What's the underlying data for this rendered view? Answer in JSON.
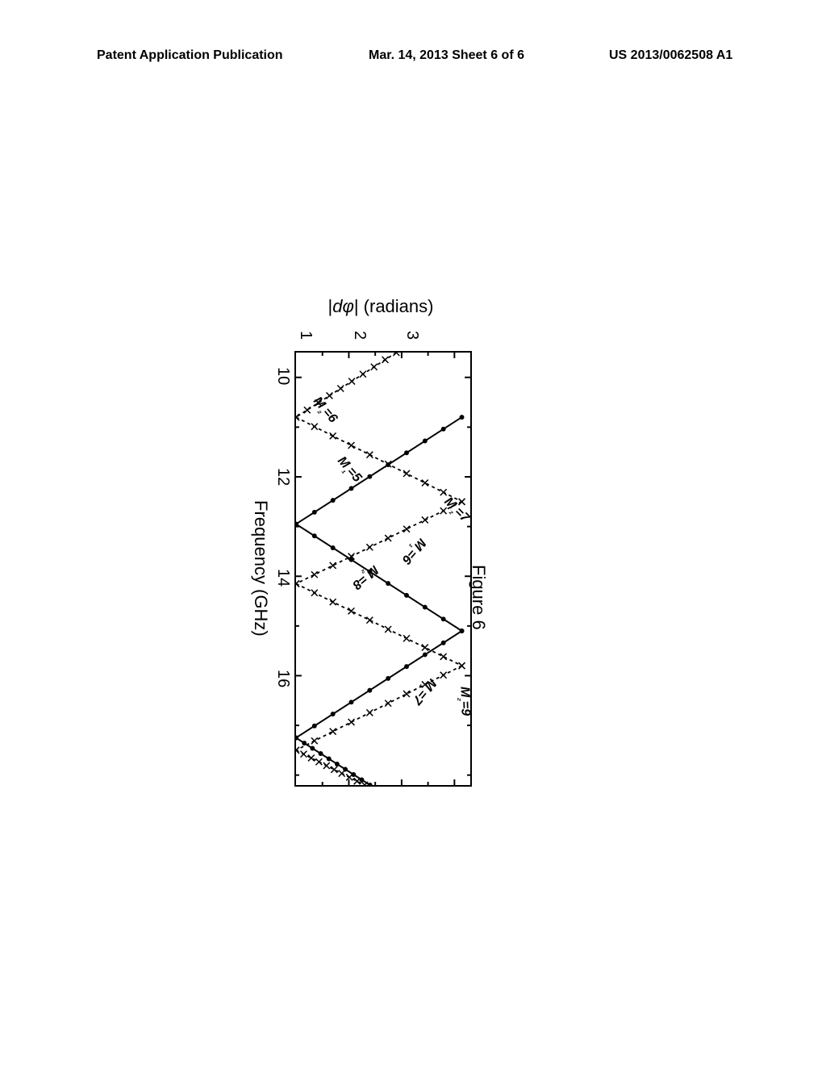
{
  "header": {
    "left": "Patent Application Publication",
    "center": "Mar. 14, 2013  Sheet 6 of 6",
    "right": "US 2013/0062508 A1"
  },
  "figure": {
    "caption": "Figure 6",
    "x_axis": {
      "label": "Frequency (GHz)",
      "min": 9.5,
      "max": 18.2,
      "ticks": [
        10,
        12,
        14,
        16
      ],
      "fontsize": 22
    },
    "y_axis": {
      "label": "|dφ| (radians)",
      "min": 0,
      "max": 3.3,
      "ticks": [
        1,
        2,
        3
      ],
      "fontsize": 22
    },
    "background_color": "#ffffff",
    "border_color": "#000000",
    "series_solid": {
      "label_prefix": "M₁",
      "style": "solid",
      "color": "#000000",
      "line_width": 2,
      "marker": "dot",
      "marker_size": 3,
      "segments": [
        {
          "label": "M₁=5",
          "x": [
            10.8,
            12.95
          ],
          "y": [
            3.14,
            0
          ],
          "label_pos": {
            "x": 12.0,
            "y": 1.0,
            "rot": -41
          }
        },
        {
          "label": "M₁=6",
          "x": [
            12.95,
            15.1
          ],
          "y": [
            0,
            3.14
          ],
          "label_pos": {
            "x": 13.6,
            "y": 2.2,
            "rot": 41
          }
        },
        {
          "label": "M₁=6",
          "x": [
            15.1,
            17.25
          ],
          "y": [
            3.14,
            0
          ]
        },
        {
          "label": "M₁=7",
          "x": [
            17.25,
            18.2
          ],
          "y": [
            0,
            1.4
          ],
          "label_pos": {
            "x": 16.4,
            "y": 2.4,
            "rot": 40
          }
        }
      ]
    },
    "series_dashed": {
      "label_prefix": "M₂",
      "style": "dashed",
      "color": "#000000",
      "line_width": 1.8,
      "marker": "x",
      "marker_size": 4,
      "segments": [
        {
          "label": "M₂=6",
          "x": [
            9.5,
            10.8
          ],
          "y": [
            1.9,
            0
          ],
          "label_pos": {
            "x": 10.8,
            "y": 0.55,
            "rot": -40
          }
        },
        {
          "label": "M₂=6",
          "x": [
            10.8,
            12.5
          ],
          "y": [
            0,
            3.14
          ]
        },
        {
          "label": "M₂=7",
          "x": [
            12.5,
            14.15
          ],
          "y": [
            3.14,
            0
          ],
          "label_pos": {
            "x": 12.8,
            "y": 3.0,
            "rot": -45
          }
        },
        {
          "label": "M₂=8",
          "x": [
            14.15,
            15.8
          ],
          "y": [
            0,
            3.14
          ],
          "label_pos": {
            "x": 14.1,
            "y": 1.3,
            "rot": 50
          }
        },
        {
          "label": "M₂=8",
          "x": [
            15.8,
            17.5
          ],
          "y": [
            3.14,
            0
          ]
        },
        {
          "label": "M₂=9",
          "x": [
            17.5,
            18.2
          ],
          "y": [
            0,
            1.3
          ],
          "label_pos": {
            "x": 16.6,
            "y": 3.15,
            "rot": -2
          }
        }
      ]
    }
  }
}
